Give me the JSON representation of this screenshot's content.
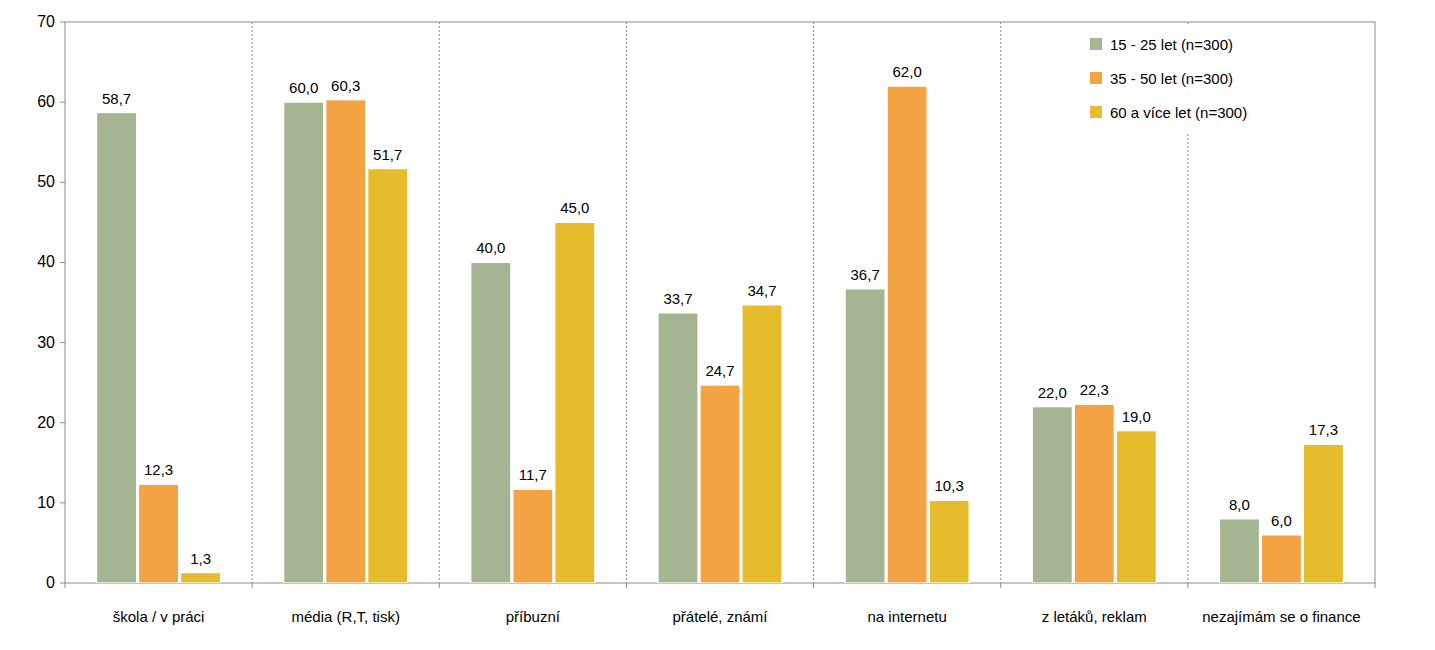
{
  "chart_data": {
    "type": "bar",
    "categories": [
      "škola / v práci",
      "média (R,T,  tisk)",
      "příbuzní",
      "přátelé, známí",
      "na internetu",
      "z letáků, reklam",
      "nezajímám se o finance"
    ],
    "series": [
      {
        "name": "15 - 25 let (n=300)",
        "color": "#a6b591",
        "values": [
          58.7,
          60.0,
          40.0,
          33.7,
          36.7,
          22.0,
          8.0
        ],
        "value_labels": [
          "58,7",
          "60,0",
          "40,0",
          "33,7",
          "36,7",
          "22,0",
          "8,0"
        ]
      },
      {
        "name": "35 - 50 let (n=300)",
        "color": "#f3a244",
        "values": [
          12.3,
          60.3,
          11.7,
          24.7,
          62.0,
          22.3,
          6.0
        ],
        "value_labels": [
          "12,3",
          "60,3",
          "11,7",
          "24,7",
          "62,0",
          "22,3",
          "6,0"
        ]
      },
      {
        "name": "60 a více let (n=300)",
        "color": "#e6bb2c",
        "values": [
          1.3,
          51.7,
          45.0,
          34.7,
          10.3,
          19.0,
          17.3
        ],
        "value_labels": [
          "1,3",
          "51,7",
          "45,0",
          "34,7",
          "10,3",
          "19,0",
          "17,3"
        ]
      }
    ],
    "ylim": [
      0,
      70
    ],
    "yticks": [
      0,
      10,
      20,
      30,
      40,
      50,
      60,
      70
    ],
    "grid": true,
    "legend": "top-right",
    "data_labels": true
  }
}
